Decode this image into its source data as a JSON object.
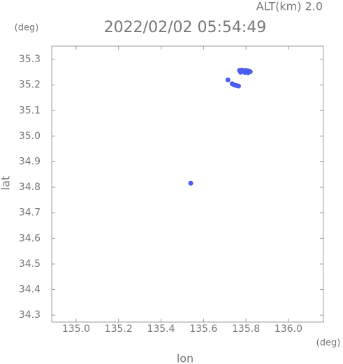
{
  "chart_data": {
    "type": "scatter",
    "title": "2022/02/02 05:54:49",
    "subtitle": "ALT(km) 2.0",
    "x_label": "lon",
    "y_label": "lat",
    "x_unit": "(deg)",
    "y_unit": "(deg)",
    "xlim": [
      134.885,
      136.165
    ],
    "ylim": [
      34.273,
      35.352
    ],
    "xticks": [
      {
        "value": 135.0,
        "label": "135.0"
      },
      135.2,
      135.4,
      135.6,
      135.8,
      {
        "value": 136.0,
        "label": "136.0"
      }
    ],
    "yticks": [
      34.3,
      34.4,
      34.5,
      34.6,
      34.7,
      34.8,
      34.9,
      {
        "value": 35.0,
        "label": "35.0"
      },
      35.1,
      35.2,
      35.3
    ],
    "series": [
      {
        "color": "#4a5ef0",
        "x": [
          135.77,
          135.78,
          135.79,
          135.8,
          135.81,
          135.82,
          135.775,
          135.795,
          135.81,
          135.735,
          135.745,
          135.755,
          135.765,
          135.715,
          135.54
        ],
        "values": [
          35.257,
          35.258,
          35.256,
          35.257,
          35.255,
          35.252,
          35.25,
          35.249,
          35.248,
          35.205,
          35.2,
          35.198,
          35.196,
          35.22,
          34.816
        ]
      }
    ]
  }
}
